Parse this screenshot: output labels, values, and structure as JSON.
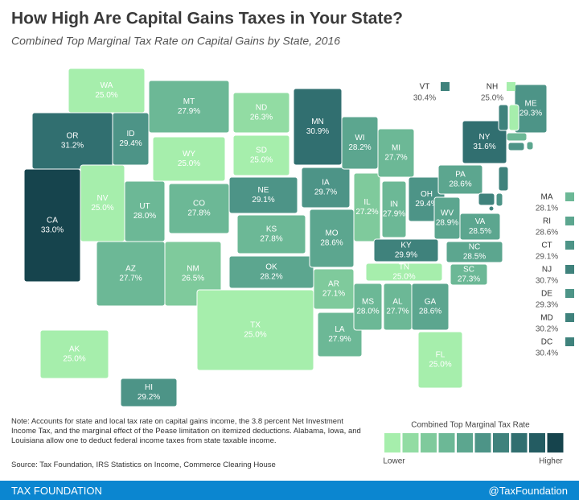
{
  "title": "How High Are Capital Gains Taxes in Your State?",
  "subtitle": "Combined Top Marginal Tax Rate on Capital Gains by State, 2016",
  "regions": {
    "names": [
      "WA",
      "OR",
      "CA",
      "NV",
      "ID",
      "MT",
      "WY",
      "UT",
      "AZ",
      "CO",
      "NM",
      "ND",
      "SD",
      "NE",
      "KS",
      "OK",
      "TX",
      "MN",
      "IA",
      "MO",
      "AR",
      "LA",
      "WI",
      "IL",
      "MI",
      "IN",
      "OH",
      "KY",
      "TN",
      "MS",
      "AL",
      "GA",
      "FL",
      "SC",
      "NC",
      "VA",
      "WV",
      "PA",
      "NY",
      "ME",
      "VT",
      "NH",
      "MA",
      "RI",
      "CT",
      "NJ",
      "DE",
      "MD",
      "DC",
      "AK",
      "HI"
    ],
    "values": [
      25.0,
      31.2,
      33.0,
      25.0,
      29.4,
      27.9,
      25.0,
      28.0,
      27.7,
      27.8,
      26.5,
      26.3,
      25.0,
      29.1,
      27.8,
      28.2,
      25.0,
      30.9,
      29.7,
      28.6,
      27.1,
      27.9,
      28.2,
      27.2,
      27.7,
      27.9,
      29.4,
      29.9,
      25.0,
      28.0,
      27.7,
      28.6,
      25.0,
      27.3,
      28.5,
      28.5,
      28.9,
      28.6,
      31.6,
      29.3,
      30.4,
      25.0,
      28.1,
      28.6,
      29.1,
      30.7,
      29.3,
      30.2,
      30.4,
      25.0,
      29.2
    ],
    "value_labels": [
      "25.0%",
      "31.2%",
      "33.0%",
      "25.0%",
      "29.4%",
      "27.9%",
      "25.0%",
      "28.0%",
      "27.7%",
      "27.8%",
      "26.5%",
      "26.3%",
      "25.0%",
      "29.1%",
      "27.8%",
      "28.2%",
      "25.0%",
      "30.9%",
      "29.7%",
      "28.6%",
      "27.1%",
      "27.9%",
      "28.2%",
      "27.2%",
      "27.7%",
      "27.9%",
      "29.4%",
      "29.9%",
      "25.0%",
      "28.0%",
      "27.7%",
      "28.6%",
      "25.0%",
      "27.3%",
      "28.5%",
      "28.5%",
      "28.9%",
      "28.6%",
      "31.6%",
      "29.3%",
      "30.4%",
      "25.0%",
      "28.1%",
      "28.6%",
      "29.1%",
      "30.7%",
      "29.3%",
      "30.2%",
      "30.4%",
      "25.0%",
      "29.2%"
    ]
  },
  "legend": {
    "title": "Combined Top Marginal Tax Rate",
    "low": "Lower",
    "high": "Higher",
    "colors": [
      "#a6eeac",
      "#92dca3",
      "#7fca9c",
      "#6cb896",
      "#5ca68f",
      "#4d9487",
      "#3f827c",
      "#316f70",
      "#245c62",
      "#16444d"
    ]
  },
  "note": "Note: Accounts for state and local tax rate on capital gains income, the 3.8 percent Net Investment Income Tax, and the marginal effect of the Pease limitation on itemized deductions. Alabama, Iowa, and Louisiana allow one to deduct federal income taxes from state taxable income.",
  "source": "Source: Tax Foundation, IRS Statistics on Income, Commerce Clearing House",
  "footer": {
    "left": "TAX FOUNDATION",
    "right": "@TaxFoundation"
  }
}
